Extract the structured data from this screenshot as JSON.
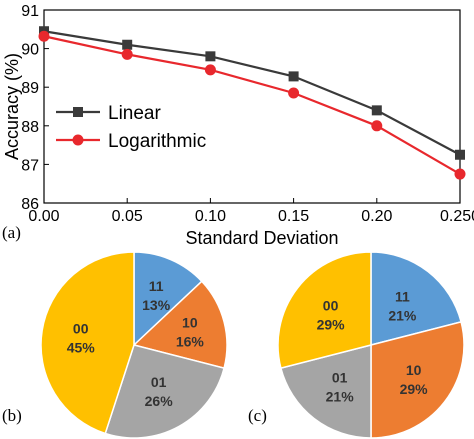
{
  "panels": {
    "a": "(a)",
    "b": "(b)",
    "c": "(c)"
  },
  "chart_data": [
    {
      "type": "line",
      "xlabel": "Standard Deviation",
      "ylabel": "Accuracy (%)",
      "xlim": [
        0.0,
        0.25
      ],
      "ylim": [
        86,
        91
      ],
      "xticks": [
        "0.00",
        "0.05",
        "0.10",
        "0.15",
        "0.20",
        "0.250"
      ],
      "yticks": [
        "86",
        "87",
        "88",
        "89",
        "90",
        "91"
      ],
      "legend": "center-left",
      "x": [
        0.0,
        0.05,
        0.1,
        0.15,
        0.2,
        0.25
      ],
      "series": [
        {
          "name": "Linear",
          "color": "#3a3a3a",
          "marker": "square",
          "values": [
            90.45,
            90.1,
            89.8,
            89.28,
            88.4,
            87.25
          ]
        },
        {
          "name": "Logarithmic",
          "color": "#e8282d",
          "marker": "circle",
          "values": [
            90.32,
            89.85,
            89.45,
            88.85,
            88.0,
            86.75
          ]
        }
      ]
    },
    {
      "type": "pie",
      "panel": "b",
      "slices": [
        {
          "label": "11",
          "value": 13,
          "text": "13%",
          "color": "#5b9bd5"
        },
        {
          "label": "10",
          "value": 16,
          "text": "16%",
          "color": "#ed7d31"
        },
        {
          "label": "01",
          "value": 26,
          "text": "26%",
          "color": "#a5a5a5"
        },
        {
          "label": "00",
          "value": 45,
          "text": "45%",
          "color": "#ffc000"
        }
      ]
    },
    {
      "type": "pie",
      "panel": "c",
      "slices": [
        {
          "label": "11",
          "value": 21,
          "text": "21%",
          "color": "#5b9bd5"
        },
        {
          "label": "10",
          "value": 29,
          "text": "29%",
          "color": "#ed7d31"
        },
        {
          "label": "01",
          "value": 21,
          "text": "21%",
          "color": "#a5a5a5"
        },
        {
          "label": "00",
          "value": 29,
          "text": "29%",
          "color": "#ffc000"
        }
      ]
    }
  ]
}
